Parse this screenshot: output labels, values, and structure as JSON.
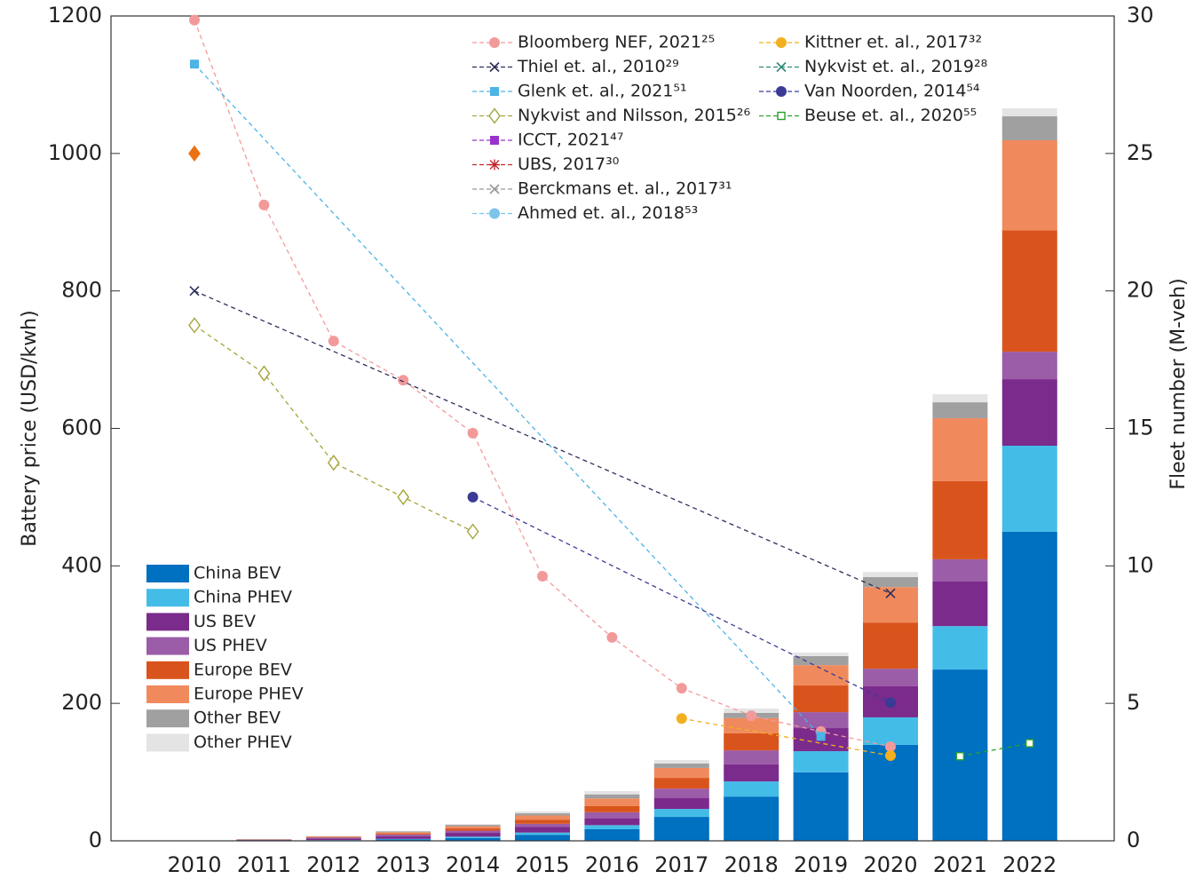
{
  "chart_data": {
    "type": "bar",
    "stacked": true,
    "categories": [
      "2010",
      "2011",
      "2012",
      "2013",
      "2014",
      "2015",
      "2016",
      "2017",
      "2018",
      "2019",
      "2020",
      "2021",
      "2022"
    ],
    "y_label": "Battery  price (USD/kwh)",
    "y2_label": "Fleet number (M-veh)",
    "ylim": [
      0,
      1200
    ],
    "yticks": [
      0,
      200,
      400,
      600,
      800,
      1000,
      1200
    ],
    "y2lim": [
      0,
      30
    ],
    "y2ticks": [
      0,
      5,
      10,
      15,
      20,
      25,
      30
    ],
    "legend": "lower left",
    "series": [
      {
        "name": "China BEV",
        "color": "#0070c0",
        "axis": "y2",
        "values": [
          0,
          0.01,
          0.02,
          0.05,
          0.1,
          0.22,
          0.42,
          0.87,
          1.61,
          2.49,
          3.49,
          6.23,
          11.24
        ]
      },
      {
        "name": "China PHEV",
        "color": "#44bce8",
        "axis": "y2",
        "values": [
          0,
          0,
          0.01,
          0.02,
          0.05,
          0.08,
          0.15,
          0.29,
          0.55,
          0.77,
          1.0,
          1.58,
          3.13
        ]
      },
      {
        "name": "US BEV",
        "color": "#7b2b8c",
        "axis": "y2",
        "values": [
          0,
          0.02,
          0.06,
          0.1,
          0.14,
          0.2,
          0.25,
          0.39,
          0.62,
          0.84,
          1.13,
          1.62,
          2.42
        ]
      },
      {
        "name": "US PHEV",
        "color": "#9b5ca8",
        "axis": "y2",
        "values": [
          0,
          0.01,
          0.03,
          0.06,
          0.08,
          0.12,
          0.22,
          0.35,
          0.51,
          0.58,
          0.64,
          0.81,
          1.0
        ]
      },
      {
        "name": "Europe BEV",
        "color": "#d9541c",
        "axis": "y2",
        "values": [
          0,
          0.01,
          0.02,
          0.04,
          0.08,
          0.15,
          0.22,
          0.39,
          0.62,
          0.97,
          1.68,
          2.84,
          4.42
        ]
      },
      {
        "name": "Europe PHEV",
        "color": "#f08a5d",
        "axis": "y2",
        "values": [
          0,
          0,
          0.02,
          0.04,
          0.08,
          0.15,
          0.28,
          0.36,
          0.55,
          0.74,
          1.29,
          2.29,
          3.27
        ]
      },
      {
        "name": "Other BEV",
        "color": "#a0a0a0",
        "axis": "y2",
        "values": [
          0,
          0.01,
          0.01,
          0.03,
          0.05,
          0.08,
          0.15,
          0.16,
          0.19,
          0.33,
          0.36,
          0.58,
          0.87
        ]
      },
      {
        "name": "Other PHEV",
        "color": "#e4e4e4",
        "axis": "y2",
        "values": [
          0,
          0,
          0.01,
          0.02,
          0.03,
          0.07,
          0.12,
          0.13,
          0.16,
          0.13,
          0.19,
          0.29,
          0.29
        ]
      },
      {
        "name": "Bloomberg NEF, 2021²⁵",
        "type": "line",
        "marker": "circle",
        "color": "#f29a9a",
        "values": [
          1194,
          925,
          727,
          670,
          593,
          385,
          296,
          222,
          182,
          159,
          137,
          null,
          null
        ]
      },
      {
        "name": "Thiel et. al., 2010²⁹",
        "type": "line",
        "marker": "x",
        "color": "#2e2e5a",
        "values": [
          800,
          null,
          null,
          null,
          null,
          null,
          null,
          null,
          null,
          null,
          360,
          null,
          null
        ]
      },
      {
        "name": "Glenk et. al., 2021⁵¹",
        "type": "line",
        "marker": "square",
        "color": "#4cb4e6",
        "values": [
          1130,
          null,
          null,
          null,
          null,
          null,
          null,
          null,
          null,
          152,
          null,
          null,
          null
        ]
      },
      {
        "name": "Nykvist and Nilsson, 2015²⁶",
        "type": "line",
        "marker": "diamond-open",
        "color": "#a5a43a",
        "values": [
          750,
          680,
          550,
          500,
          450,
          null,
          null,
          null,
          null,
          null,
          null,
          null,
          null
        ]
      },
      {
        "name": "ICCT, 2021⁴⁷",
        "type": "line",
        "marker": "square",
        "color": "#9933cc",
        "values": [
          null,
          null,
          null,
          null,
          null,
          null,
          null,
          null,
          null,
          null,
          null,
          null,
          null
        ]
      },
      {
        "name": "UBS, 2017³⁰",
        "type": "line",
        "marker": "asterisk",
        "color": "#c0282d",
        "values": [
          null,
          null,
          null,
          null,
          null,
          null,
          null,
          null,
          null,
          null,
          null,
          null,
          null
        ]
      },
      {
        "name": "Berckmans et. al., 2017³¹",
        "type": "line",
        "marker": "x",
        "color": "#999999",
        "values": [
          null,
          null,
          null,
          null,
          null,
          null,
          null,
          null,
          null,
          null,
          null,
          null,
          null
        ]
      },
      {
        "name": "Ahmed et. al., 2018⁵³",
        "type": "line",
        "marker": "circle",
        "color": "#7cc4ea",
        "values": [
          null,
          null,
          null,
          null,
          null,
          null,
          null,
          null,
          null,
          null,
          null,
          null,
          null
        ]
      },
      {
        "name": "Kittner et. al., 2017³²",
        "type": "line",
        "marker": "circle",
        "color": "#f2b01e",
        "values": [
          null,
          null,
          null,
          null,
          null,
          null,
          null,
          178,
          null,
          null,
          124,
          null,
          null
        ]
      },
      {
        "name": "Nykvist et. al., 2019²⁸",
        "type": "line",
        "marker": "x",
        "color": "#2e8b7a",
        "values": [
          null,
          null,
          null,
          null,
          null,
          null,
          null,
          null,
          null,
          null,
          null,
          null,
          null
        ]
      },
      {
        "name": "Van Noorden, 2014⁵⁴",
        "type": "line",
        "marker": "circle",
        "color": "#3b3b96",
        "values": [
          null,
          null,
          null,
          null,
          500,
          null,
          null,
          null,
          null,
          null,
          201,
          null,
          null
        ]
      },
      {
        "name": "Beuse et. al., 2020⁵⁵",
        "type": "line",
        "marker": "square-open",
        "color": "#2ca02c",
        "values": [
          null,
          null,
          null,
          null,
          null,
          null,
          null,
          null,
          null,
          null,
          null,
          123,
          142
        ]
      },
      {
        "type": "line",
        "marker": "diamond",
        "color": "#ec7014",
        "values": [
          1000,
          null,
          null,
          null,
          null,
          null,
          null,
          null,
          null,
          null,
          null,
          null,
          null
        ]
      }
    ]
  }
}
